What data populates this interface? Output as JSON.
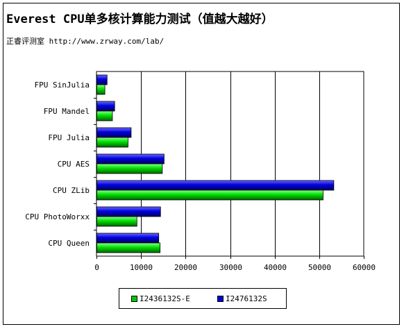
{
  "title": "Everest CPU单多核计算能力测试（值越大越好）",
  "subtitle": "正睿评测室 http://www.zrway.com/lab/",
  "colors": {
    "series1": "#00c800",
    "series2": "#0000d0"
  },
  "chart_data": {
    "type": "bar",
    "orientation": "horizontal",
    "categories": [
      "FPU SinJulia",
      "FPU Mandel",
      "FPU Julia",
      "CPU AES",
      "CPU ZLib",
      "CPU PhotoWorxx",
      "CPU Queen"
    ],
    "series": [
      {
        "name": "I2436132S-E",
        "values": [
          1800,
          3500,
          7000,
          14700,
          50800,
          9000,
          14200
        ]
      },
      {
        "name": "I2476132S",
        "values": [
          2300,
          4000,
          7700,
          15100,
          53200,
          14300,
          13900
        ]
      }
    ],
    "xlim": [
      0,
      60000
    ],
    "xticks": [
      0,
      10000,
      20000,
      30000,
      40000,
      50000,
      60000
    ],
    "grid": "vertical",
    "legend": "bottom"
  }
}
